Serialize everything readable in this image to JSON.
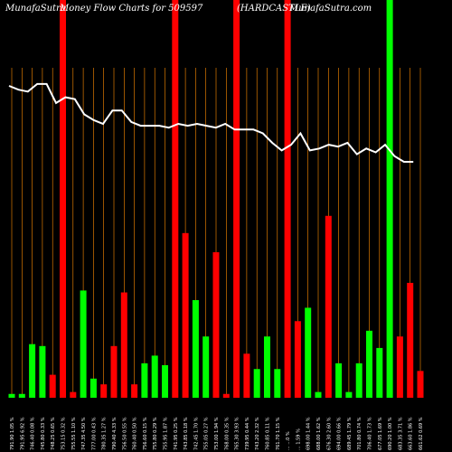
{
  "chart_data": {
    "type": "bar",
    "header": {
      "site_left": "MunafaSutra",
      "title": "Money Flow  Charts for 509597",
      "symbol": "(HARDCASTLE)",
      "site_right": "MunafaSutra.com"
    },
    "colors": {
      "background": "#000000",
      "up": "#00ff00",
      "down": "#ff0000",
      "price_line": "#ffffff",
      "grid": "#ff8c00"
    },
    "price_line": [
      48,
      46,
      45,
      49,
      49,
      39,
      42,
      41,
      33,
      30,
      28,
      35,
      35,
      29,
      27,
      27,
      27,
      26,
      28,
      27,
      28,
      27,
      26,
      28,
      25,
      25,
      25,
      23,
      18,
      14,
      17,
      23,
      14,
      15,
      17,
      16,
      18,
      12,
      15,
      13,
      17,
      11,
      8,
      8
    ],
    "bars": [
      {
        "label": "791.90  1.05 %",
        "value": 2,
        "direction": "up",
        "full": false
      },
      {
        "label": "791.95  6.92 %",
        "value": 2,
        "direction": "up",
        "full": false
      },
      {
        "label": "746.40  0.08 %",
        "value": 28,
        "direction": "up",
        "full": false
      },
      {
        "label": "745.80  0.33 %",
        "value": 27,
        "direction": "up",
        "full": false
      },
      {
        "label": "748.25  0.65 %",
        "value": 12,
        "direction": "down",
        "full": false
      },
      {
        "label": "753.15  0.32 %",
        "value": 110,
        "direction": "down",
        "full": true
      },
      {
        "label": "755.55  1.10 %",
        "value": 3,
        "direction": "down",
        "full": false
      },
      {
        "label": "747.35  4.50 %",
        "value": 56,
        "direction": "up",
        "full": false
      },
      {
        "label": "777.00  0.43 %",
        "value": 10,
        "direction": "up",
        "full": false
      },
      {
        "label": "780.35  1.27 %",
        "value": 7,
        "direction": "down",
        "full": false
      },
      {
        "label": "790.40  4.33 %",
        "value": 27,
        "direction": "down",
        "full": false
      },
      {
        "label": "756.50  0.55 %",
        "value": 55,
        "direction": "down",
        "full": false
      },
      {
        "label": "760.40  0.50 %",
        "value": 7,
        "direction": "down",
        "full": false
      },
      {
        "label": "756.60  0.15 %",
        "value": 18,
        "direction": "up",
        "full": false
      },
      {
        "label": "755.80  0.29 %",
        "value": 22,
        "direction": "up",
        "full": false
      },
      {
        "label": "755.95  1.87 %",
        "value": 17,
        "direction": "up",
        "full": false
      },
      {
        "label": "741.95  0.25 %",
        "value": 110,
        "direction": "down",
        "full": true
      },
      {
        "label": "743.85  0.18 %",
        "value": 86,
        "direction": "down",
        "full": false
      },
      {
        "label": "742.45  1.70 %",
        "value": 51,
        "direction": "up",
        "full": false
      },
      {
        "label": "755.05  0.27 %",
        "value": 32,
        "direction": "up",
        "full": false
      },
      {
        "label": "753.00  1.94 %",
        "value": 76,
        "direction": "down",
        "full": false
      },
      {
        "label": "768.00  0.35 %",
        "value": 2,
        "direction": "down",
        "full": false
      },
      {
        "label": "765.30  3.93 %",
        "value": 110,
        "direction": "down",
        "full": true
      },
      {
        "label": "739.95  0.44 %",
        "value": 23,
        "direction": "down",
        "full": false
      },
      {
        "label": "743.20  2.32 %",
        "value": 15,
        "direction": "up",
        "full": false
      },
      {
        "label": "760.85  0.11 %",
        "value": 32,
        "direction": "up",
        "full": false
      },
      {
        "label": "761.70  1.15 %",
        "value": 15,
        "direction": "up",
        "full": false
      },
      {
        "label": "...  ...0 %",
        "value": 110,
        "direction": "down",
        "full": true
      },
      {
        "label": "...  1.59 %",
        "value": 40,
        "direction": "down",
        "full": false
      },
      {
        "label": "698.00  1.44 %",
        "value": 47,
        "direction": "up",
        "full": false
      },
      {
        "label": "688.00  1.62 %",
        "value": 3,
        "direction": "up",
        "full": false
      },
      {
        "label": "676.30  2.60 %",
        "value": 95,
        "direction": "down",
        "full": false
      },
      {
        "label": "694.00  0.66 %",
        "value": 18,
        "direction": "up",
        "full": false
      },
      {
        "label": "689.45  1.79 %",
        "value": 3,
        "direction": "up",
        "full": false
      },
      {
        "label": "701.80  0.74 %",
        "value": 18,
        "direction": "up",
        "full": false
      },
      {
        "label": "706.40  1.73 %",
        "value": 35,
        "direction": "up",
        "full": false
      },
      {
        "label": "677.05  1.69 %",
        "value": 26,
        "direction": "up",
        "full": false
      },
      {
        "label": "690.20  1.00 %",
        "value": 110,
        "direction": "up",
        "full": true
      },
      {
        "label": "683.35  3.71 %",
        "value": 32,
        "direction": "down",
        "full": false
      },
      {
        "label": "663.60  1.86 %",
        "value": 60,
        "direction": "down",
        "full": false
      },
      {
        "label": "661.62  0.69 %",
        "value": 14,
        "direction": "down",
        "full": false
      }
    ]
  }
}
